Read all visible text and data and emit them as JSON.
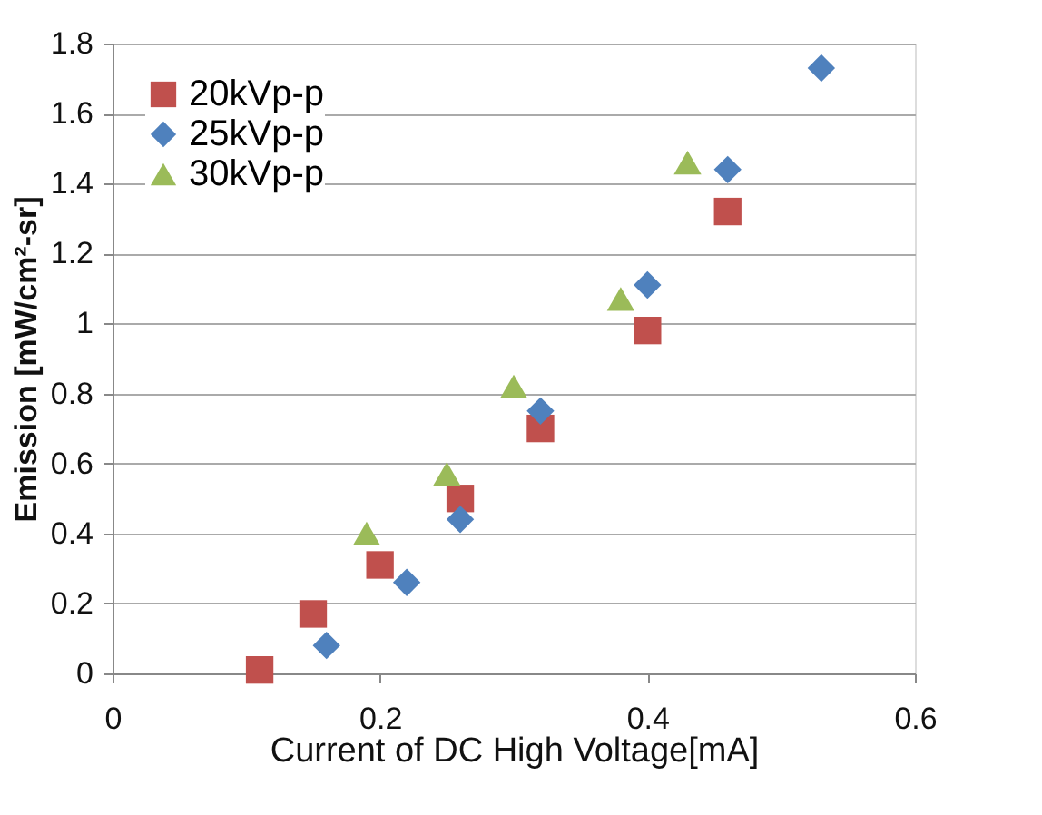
{
  "chart_data": {
    "type": "scatter",
    "xlabel": "Current of DC  High Voltage[mA]",
    "ylabel": "Emission [mW/cm²-sr]",
    "xlim": [
      0,
      0.6
    ],
    "xticks": [
      0,
      0.2,
      0.4,
      0.6
    ],
    "ylim": [
      0,
      1.8
    ],
    "yticks": [
      0,
      0.2,
      0.4,
      0.6,
      0.8,
      1,
      1.2,
      1.4,
      1.6,
      1.8
    ],
    "grid": "y",
    "legend": "top left",
    "series": [
      {
        "name": "20kVp-p",
        "color": "#c0504d",
        "marker": "square",
        "x": [
          0.11,
          0.15,
          0.2,
          0.26,
          0.32,
          0.4,
          0.46
        ],
        "values": [
          0.01,
          0.17,
          0.31,
          0.5,
          0.7,
          0.98,
          1.32
        ]
      },
      {
        "name": "25kVp-p",
        "color": "#4f81bd",
        "marker": "diamond",
        "x": [
          0.16,
          0.22,
          0.26,
          0.32,
          0.4,
          0.46,
          0.53
        ],
        "values": [
          0.08,
          0.26,
          0.44,
          0.75,
          1.11,
          1.44,
          1.73
        ]
      },
      {
        "name": "30kVp-p",
        "color": "#9bbb59",
        "marker": "triangle",
        "x": [
          0.19,
          0.25,
          0.3,
          0.38,
          0.43
        ],
        "values": [
          0.4,
          0.57,
          0.82,
          1.07,
          1.46
        ]
      }
    ]
  }
}
